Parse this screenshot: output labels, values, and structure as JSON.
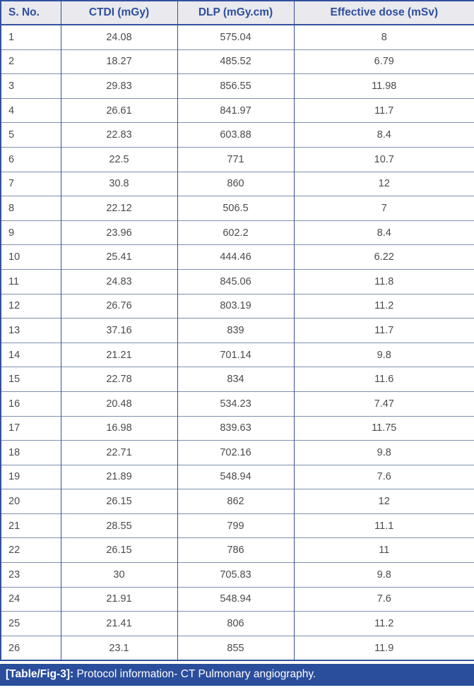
{
  "table": {
    "columns": [
      "S. No.",
      "CTDI (mGy)",
      "DLP (mGy.cm)",
      "Effective dose (mSv)"
    ],
    "rows": [
      [
        "1",
        "24.08",
        "575.04",
        "8"
      ],
      [
        "2",
        "18.27",
        "485.52",
        "6.79"
      ],
      [
        "3",
        "29.83",
        "856.55",
        "11.98"
      ],
      [
        "4",
        "26.61",
        "841.97",
        "11.7"
      ],
      [
        "5",
        "22.83",
        "603.88",
        "8.4"
      ],
      [
        "6",
        "22.5",
        "771",
        "10.7"
      ],
      [
        "7",
        "30.8",
        "860",
        "12"
      ],
      [
        "8",
        "22.12",
        "506.5",
        "7"
      ],
      [
        "9",
        "23.96",
        "602.2",
        "8.4"
      ],
      [
        "10",
        "25.41",
        "444.46",
        "6.22"
      ],
      [
        "11",
        "24.83",
        "845.06",
        "11.8"
      ],
      [
        "12",
        "26.76",
        "803.19",
        "11.2"
      ],
      [
        "13",
        "37.16",
        "839",
        "11.7"
      ],
      [
        "14",
        "21.21",
        "701.14",
        "9.8"
      ],
      [
        "15",
        "22.78",
        "834",
        "11.6"
      ],
      [
        "16",
        "20.48",
        "534.23",
        "7.47"
      ],
      [
        "17",
        "16.98",
        "839.63",
        "11.75"
      ],
      [
        "18",
        "22.71",
        "702.16",
        "9.8"
      ],
      [
        "19",
        "21.89",
        "548.94",
        "7.6"
      ],
      [
        "20",
        "26.15",
        "862",
        "12"
      ],
      [
        "21",
        "28.55",
        "799",
        "11.1"
      ],
      [
        "22",
        "26.15",
        "786",
        "11"
      ],
      [
        "23",
        "30",
        "705.83",
        "9.8"
      ],
      [
        "24",
        "21.91",
        "548.94",
        "7.6"
      ],
      [
        "25",
        "21.41",
        "806",
        "11.2"
      ],
      [
        "26",
        "23.1",
        "855",
        "11.9"
      ]
    ]
  },
  "caption": {
    "label": "[Table/Fig-3]:",
    "text": " Protocol information- CT Pulmonary angiography."
  },
  "colors": {
    "header_text": "#2e4d9e",
    "header_bg": "#e9e9ee",
    "outer_border": "#33519f",
    "row_separator": "#7e90b0",
    "cell_text": "#4a4b4d",
    "caption_bg": "#2a4d9c",
    "caption_text": "#ffffff"
  },
  "chart_data": {
    "type": "table",
    "title": "[Table/Fig-3]: Protocol information- CT Pulmonary angiography.",
    "columns": [
      "S. No.",
      "CTDI (mGy)",
      "DLP (mGy.cm)",
      "Effective dose (mSv)"
    ],
    "series": [
      {
        "name": "CTDI (mGy)",
        "values": [
          24.08,
          18.27,
          29.83,
          26.61,
          22.83,
          22.5,
          30.8,
          22.12,
          23.96,
          25.41,
          24.83,
          26.76,
          37.16,
          21.21,
          22.78,
          20.48,
          16.98,
          22.71,
          21.89,
          26.15,
          28.55,
          26.15,
          30,
          21.91,
          21.41,
          23.1
        ]
      },
      {
        "name": "DLP (mGy.cm)",
        "values": [
          575.04,
          485.52,
          856.55,
          841.97,
          603.88,
          771,
          860,
          506.5,
          602.2,
          444.46,
          845.06,
          803.19,
          839,
          701.14,
          834,
          534.23,
          839.63,
          702.16,
          548.94,
          862,
          799,
          786,
          705.83,
          548.94,
          806,
          855
        ]
      },
      {
        "name": "Effective dose (mSv)",
        "values": [
          8,
          6.79,
          11.98,
          11.7,
          8.4,
          10.7,
          12,
          7,
          8.4,
          6.22,
          11.8,
          11.2,
          11.7,
          9.8,
          11.6,
          7.47,
          11.75,
          9.8,
          7.6,
          12,
          11.1,
          11,
          9.8,
          7.6,
          11.2,
          11.9
        ]
      }
    ],
    "categories": [
      1,
      2,
      3,
      4,
      5,
      6,
      7,
      8,
      9,
      10,
      11,
      12,
      13,
      14,
      15,
      16,
      17,
      18,
      19,
      20,
      21,
      22,
      23,
      24,
      25,
      26
    ]
  }
}
